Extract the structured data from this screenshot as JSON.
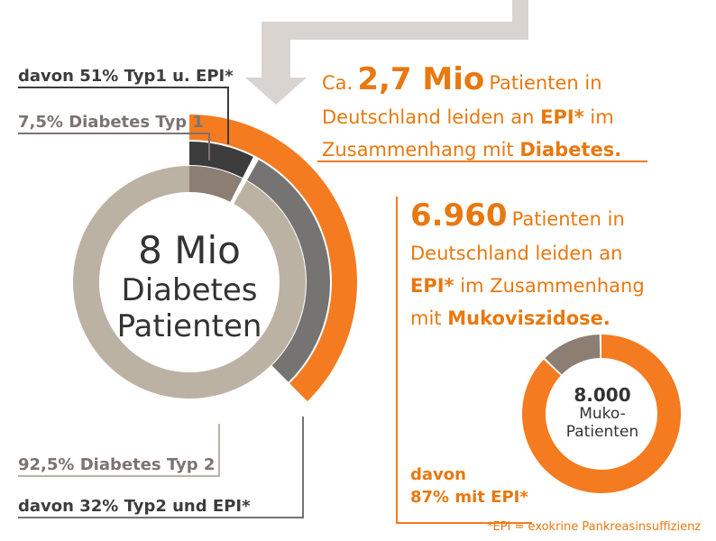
{
  "colors": {
    "orange": "#f47b20",
    "text_orange": "#e8780f",
    "beige": "#bcb2a4",
    "brown_gray": "#8c7e73",
    "mid_gray": "#767473",
    "dark": "#3c3c3c",
    "label_gray": "#7c7470",
    "bg": "#ffffff"
  },
  "chart_data": [
    {
      "type": "pie",
      "title": "8 Mio Diabetes Patienten",
      "center_lines": [
        "8 Mio",
        "Diabetes",
        "Patienten"
      ],
      "slices": [
        {
          "label": "7,5% Diabetes Typ 1",
          "value": 7.5
        },
        {
          "label": "92,5% Diabetes Typ 2",
          "value": 92.5
        }
      ],
      "sub_shares": [
        {
          "label": "davon 51% Typ1 u. EPI*",
          "value": 51,
          "of": "7,5% Diabetes Typ 1"
        },
        {
          "label": "davon 32% Typ2 und EPI*",
          "value": 32,
          "of": "92,5% Diabetes Typ 2"
        }
      ]
    },
    {
      "type": "pie",
      "title": "8.000 Muko-Patienten",
      "center_lines": [
        "8.000",
        "Muko-",
        "Patienten"
      ],
      "slices": [
        {
          "label": "davon 87% mit EPI*",
          "value": 87
        },
        {
          "label": "",
          "value": 13
        }
      ]
    }
  ],
  "labels": {
    "typ1_epi": "davon 51% Typ1 u. EPI*",
    "typ1": "7,5% Diabetes Typ 1",
    "typ2": "92,5% Diabetes Typ 2",
    "typ2_epi": "davon 32% Typ2 und EPI*",
    "muko_epi_line1": "davon",
    "muko_epi_line2": "87% mit EPI*",
    "footnote": "*EPI = exokrine Pankreasinsuffizienz"
  },
  "statement_diabetes": {
    "prefix": "Ca.",
    "number": "2,7 Mio",
    "line1_rest": "Patienten in",
    "line2_pre": "Deutschland leiden an",
    "line2_bold": "EPI*",
    "line2_post": "im",
    "line3_pre": "Zusammenhang mit",
    "line3_bold": "Diabetes",
    "line3_post": "."
  },
  "statement_muko": {
    "number": "6.960",
    "line1_rest": "Patienten in",
    "line2": "Deutschland leiden an",
    "line3_bold": "EPI*",
    "line3_rest": "im Zusammenhang",
    "line4_pre": "mit",
    "line4_bold": "Mukoviszidose",
    "line4_post": "."
  }
}
